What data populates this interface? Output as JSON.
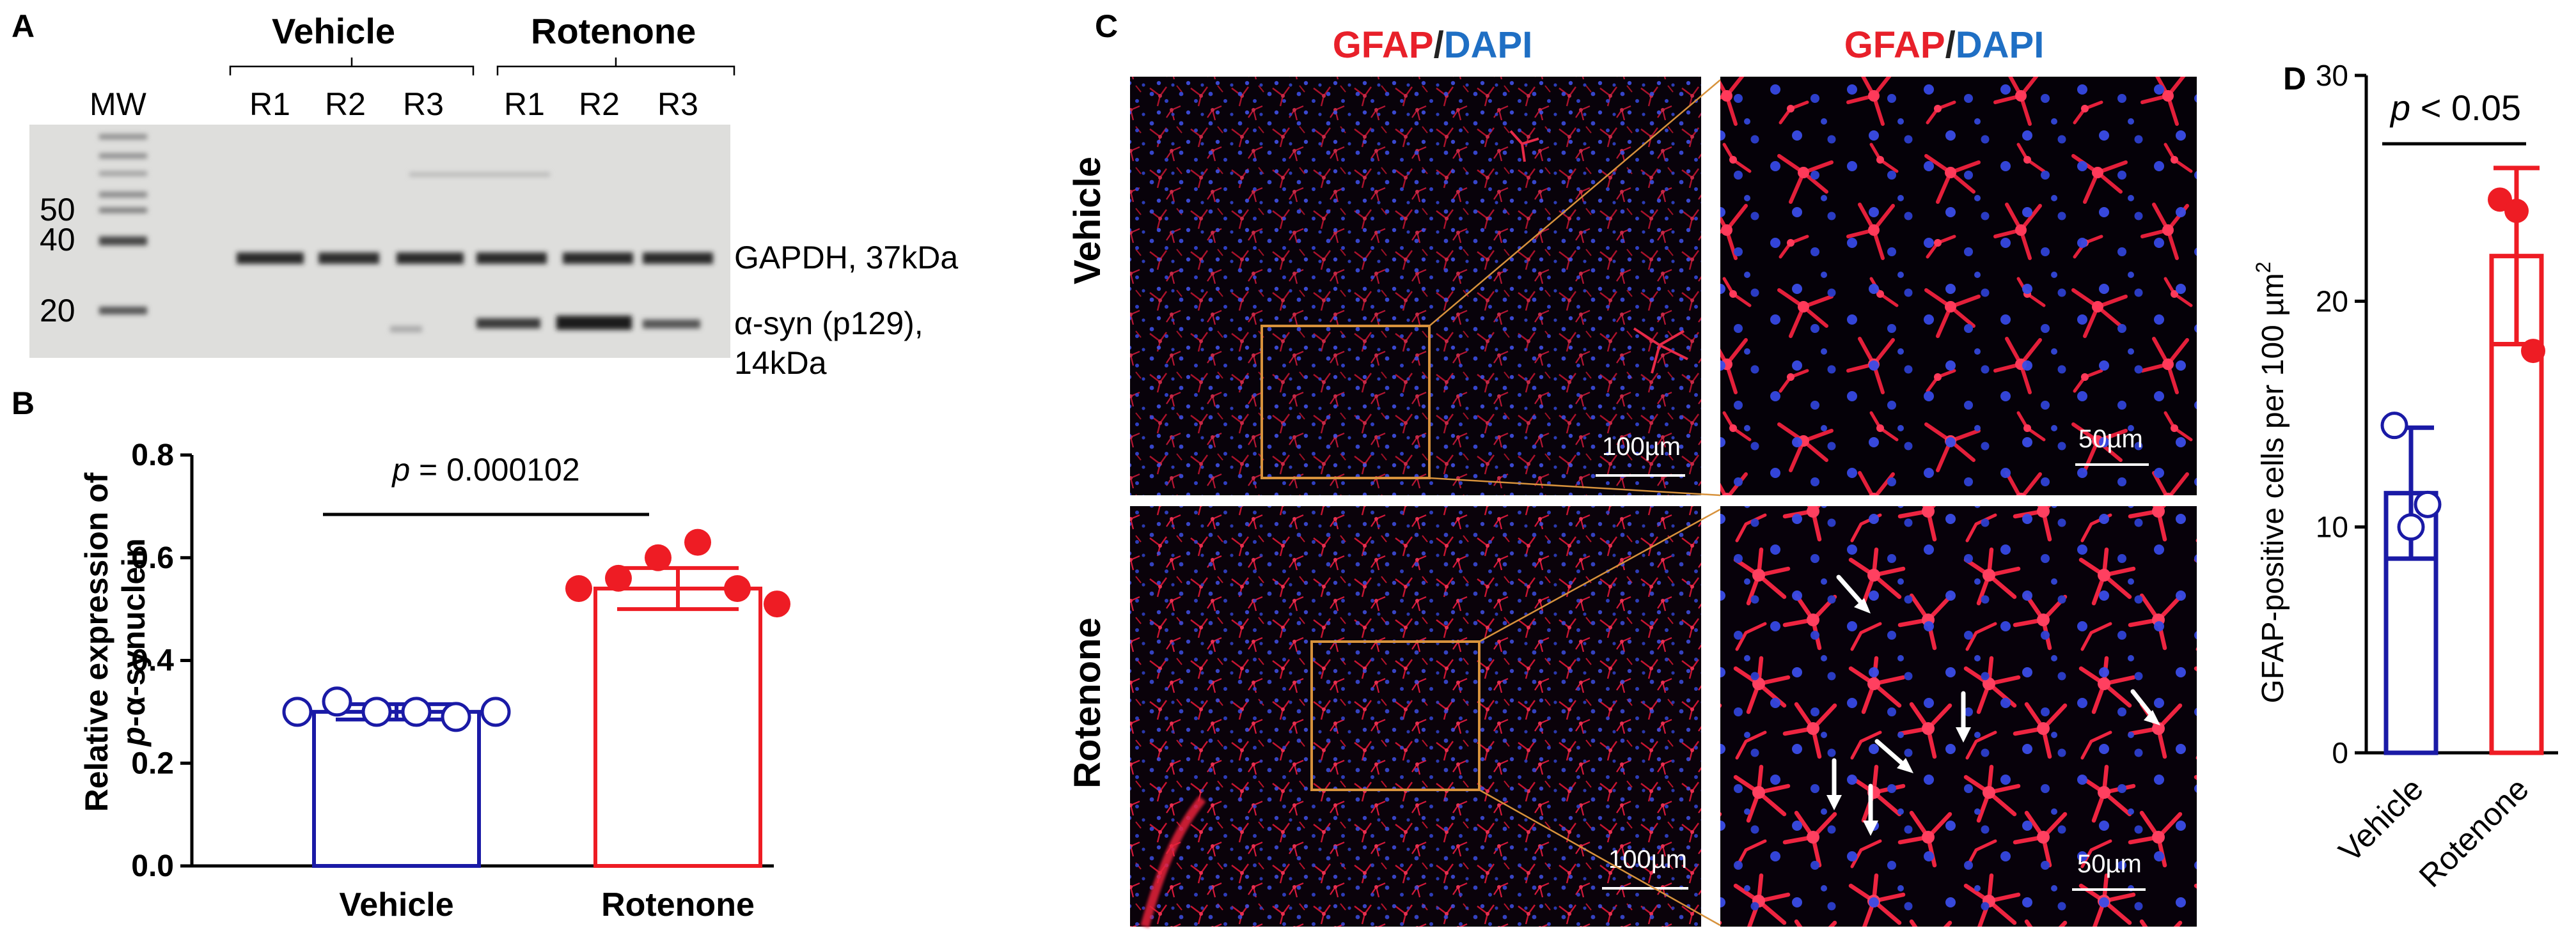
{
  "panels": {
    "A": {
      "label": "A",
      "group_vehicle": "Vehicle",
      "group_rotenone": "Rotenone",
      "mw_label": "MW",
      "lanes": [
        "R1",
        "R2",
        "R3",
        "R1",
        "R2",
        "R3"
      ],
      "mw_markers": [
        "50",
        "40",
        "20"
      ],
      "gapdh_label": "GAPDH, 37kDa",
      "asyn_label_1": "α-syn (p129),",
      "asyn_label_2": "14kDa"
    },
    "B": {
      "label": "B",
      "ylabel_1": "Relative expression of",
      "ylabel_2_p": "p",
      "ylabel_2_rest": "-α-synuclein",
      "pvalue_p": "p",
      "pvalue_rest": " = 0.000102"
    },
    "C": {
      "label": "C",
      "title_gfap": "GFAP",
      "title_sep": "/",
      "title_dapi": "DAPI",
      "row_vehicle": "Vehicle",
      "row_rotenone": "Rotenone",
      "scale_100": "100µm",
      "scale_50": "50µm"
    },
    "D": {
      "label": "D",
      "ylabel": "GFAP-positive cells per 100 µm",
      "ylabel_sup": "2",
      "pvalue_p": "p",
      "pvalue_rest": " < 0.05"
    }
  },
  "colors": {
    "vehicle": "#1a1aa6",
    "rotenone": "#ee1c24",
    "gfap": "#e8202a",
    "dapi": "#1f6fc4",
    "roi_box": "#d7923c"
  },
  "chart_data": [
    {
      "type": "bar",
      "panel": "B",
      "categories": [
        "Vehicle",
        "Rotenone"
      ],
      "ylim": [
        0,
        0.8
      ],
      "yticks": [
        0.0,
        0.2,
        0.4,
        0.6,
        0.8
      ],
      "ytick_labels": [
        "0.0",
        "0.2",
        "0.4",
        "0.6",
        "0.8"
      ],
      "values": [
        0.3,
        0.54
      ],
      "error": [
        0.015,
        0.04
      ],
      "points": [
        [
          0.3,
          0.32,
          0.3,
          0.3,
          0.29,
          0.3
        ],
        [
          0.54,
          0.56,
          0.6,
          0.63,
          0.54,
          0.51
        ]
      ],
      "marker_style": [
        "open",
        "filled"
      ]
    },
    {
      "type": "bar",
      "panel": "D",
      "categories": [
        "Vehicle",
        "Rotenone"
      ],
      "ylim": [
        0,
        30
      ],
      "yticks": [
        0,
        10,
        20,
        30
      ],
      "ytick_labels": [
        "0",
        "10",
        "20",
        "30"
      ],
      "values": [
        11.5,
        22
      ],
      "error": [
        2.9,
        3.9
      ],
      "points": [
        [
          14.5,
          10.0,
          11.0
        ],
        [
          24.5,
          24.0,
          17.8
        ]
      ],
      "marker_style": [
        "open",
        "filled"
      ]
    }
  ]
}
